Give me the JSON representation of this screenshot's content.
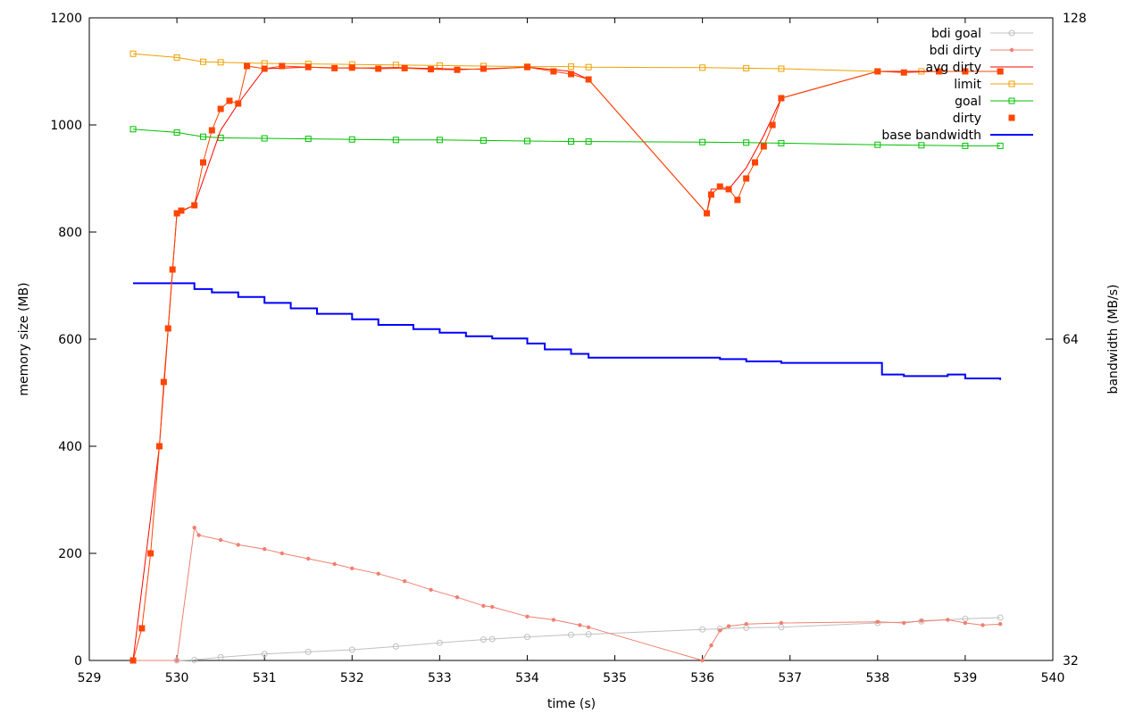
{
  "chart_data": {
    "type": "line",
    "xlabel": "time (s)",
    "ylabel": "memory size (MB)",
    "y2label": "bandwidth (MB/s)",
    "xlim": [
      529,
      540
    ],
    "ylim": [
      0,
      1200
    ],
    "y2lim": [
      32,
      128
    ],
    "xticks": [
      529,
      530,
      531,
      532,
      533,
      534,
      535,
      536,
      537,
      538,
      539,
      540
    ],
    "yticks": [
      0,
      200,
      400,
      600,
      800,
      1000,
      1200
    ],
    "y2ticks": [
      32,
      64,
      128
    ],
    "y2scale": "log2",
    "grid": false,
    "legend_position": "top-right",
    "series": [
      {
        "name": "bdi goal",
        "color": "#c0c0c0",
        "marker": "circle",
        "axis": "y",
        "x": [
          529.5,
          530.0,
          530.2,
          530.5,
          531.0,
          531.5,
          532.0,
          532.5,
          533.0,
          533.5,
          533.6,
          534.0,
          534.5,
          534.7,
          536.0,
          536.2,
          536.5,
          536.9,
          538.0,
          538.5,
          539.0,
          539.4
        ],
        "y": [
          0,
          0,
          1,
          6,
          12,
          16,
          20,
          26,
          33,
          39,
          40,
          44,
          48,
          49,
          58,
          59,
          61,
          62,
          70,
          73,
          78,
          80
        ]
      },
      {
        "name": "bdi dirty",
        "color": "#f08070",
        "marker": "dot",
        "axis": "y",
        "x": [
          529.5,
          530.0,
          530.2,
          530.25,
          530.5,
          530.7,
          531.0,
          531.2,
          531.5,
          531.8,
          532.0,
          532.3,
          532.6,
          532.9,
          533.2,
          533.5,
          533.6,
          534.0,
          534.3,
          534.6,
          534.7,
          536.0,
          536.1,
          536.2,
          536.3,
          536.5,
          536.9,
          538.0,
          538.3,
          538.5,
          538.8,
          539.0,
          539.2,
          539.4
        ],
        "y": [
          0,
          0,
          248,
          234,
          225,
          216,
          208,
          200,
          190,
          180,
          172,
          162,
          148,
          132,
          118,
          102,
          100,
          82,
          76,
          66,
          62,
          0,
          28,
          56,
          64,
          68,
          70,
          72,
          70,
          74,
          76,
          70,
          66,
          68
        ]
      },
      {
        "name": "avg dirty",
        "color": "#ff0000",
        "marker": "none",
        "axis": "y",
        "x": [
          529.5,
          529.8,
          530.0,
          530.2,
          530.5,
          530.7,
          531.0,
          531.5,
          532.0,
          532.5,
          533.0,
          533.5,
          534.0,
          534.5,
          534.7,
          536.05,
          536.1,
          536.3,
          536.5,
          536.7,
          536.9,
          538.0,
          538.5,
          539.0,
          539.4
        ],
        "y": [
          0,
          400,
          835,
          850,
          990,
          1040,
          1105,
          1108,
          1106,
          1107,
          1105,
          1104,
          1108,
          1100,
          1085,
          835,
          880,
          880,
          920,
          980,
          1050,
          1100,
          1100,
          1100,
          1100
        ]
      },
      {
        "name": "limit",
        "color": "#f0a000",
        "marker": "square-open",
        "axis": "y",
        "x": [
          529.5,
          530.0,
          530.3,
          530.5,
          531.0,
          531.5,
          532.0,
          532.5,
          533.0,
          533.5,
          534.0,
          534.5,
          534.7,
          536.0,
          536.5,
          536.9,
          538.0,
          538.5,
          539.0,
          539.4
        ],
        "y": [
          1133,
          1126,
          1118,
          1117,
          1115,
          1114,
          1113,
          1112,
          1111,
          1110,
          1109,
          1109,
          1108,
          1107,
          1106,
          1105,
          1100,
          1100,
          1100,
          1100
        ]
      },
      {
        "name": "goal",
        "color": "#00c000",
        "marker": "square-open",
        "axis": "y",
        "x": [
          529.5,
          530.0,
          530.3,
          530.5,
          531.0,
          531.5,
          532.0,
          532.5,
          533.0,
          533.5,
          534.0,
          534.5,
          534.7,
          536.0,
          536.5,
          536.9,
          538.0,
          538.5,
          539.0,
          539.4
        ],
        "y": [
          992,
          986,
          978,
          976,
          975,
          974,
          973,
          972,
          972,
          971,
          970,
          969,
          969,
          968,
          967,
          966,
          963,
          962,
          961,
          961
        ]
      },
      {
        "name": "dirty",
        "color": "#ff4500",
        "marker": "square-filled",
        "axis": "y",
        "x": [
          529.5,
          529.6,
          529.7,
          529.8,
          529.85,
          529.9,
          529.95,
          530.0,
          530.05,
          530.2,
          530.3,
          530.4,
          530.5,
          530.6,
          530.7,
          530.8,
          531.0,
          531.2,
          531.5,
          531.8,
          532.0,
          532.3,
          532.6,
          532.9,
          533.2,
          533.5,
          534.0,
          534.3,
          534.5,
          534.7,
          536.05,
          536.1,
          536.2,
          536.3,
          536.4,
          536.5,
          536.6,
          536.7,
          536.8,
          536.9,
          538.0,
          538.3,
          538.7,
          539.0,
          539.4
        ],
        "y": [
          0,
          60,
          200,
          400,
          520,
          620,
          730,
          835,
          840,
          850,
          930,
          990,
          1030,
          1045,
          1040,
          1110,
          1105,
          1110,
          1108,
          1106,
          1107,
          1105,
          1106,
          1104,
          1103,
          1105,
          1108,
          1100,
          1095,
          1085,
          835,
          870,
          885,
          880,
          860,
          900,
          930,
          960,
          1000,
          1050,
          1100,
          1098,
          1100,
          1100,
          1100
        ]
      },
      {
        "name": "base bandwidth",
        "color": "#0000ff",
        "marker": "none",
        "axis": "y2",
        "x": [
          529.5,
          530.0,
          530.2,
          530.4,
          530.7,
          531.0,
          531.3,
          531.6,
          532.0,
          532.3,
          532.7,
          533.0,
          533.3,
          533.6,
          534.0,
          534.2,
          534.5,
          534.7,
          535.0,
          535.5,
          536.0,
          536.2,
          536.5,
          536.9,
          537.5,
          538.0,
          538.05,
          538.3,
          538.8,
          539.0,
          539.4
        ],
        "y": [
          72.2,
          72.2,
          71.3,
          70.8,
          70.1,
          69.2,
          68.4,
          67.6,
          66.8,
          66.0,
          65.4,
          64.9,
          64.4,
          64.1,
          63.4,
          62.6,
          62.0,
          61.5,
          61.5,
          61.5,
          61.5,
          61.3,
          61.0,
          60.8,
          60.8,
          60.8,
          59.3,
          59.1,
          59.3,
          58.8,
          58.6
        ]
      }
    ]
  }
}
